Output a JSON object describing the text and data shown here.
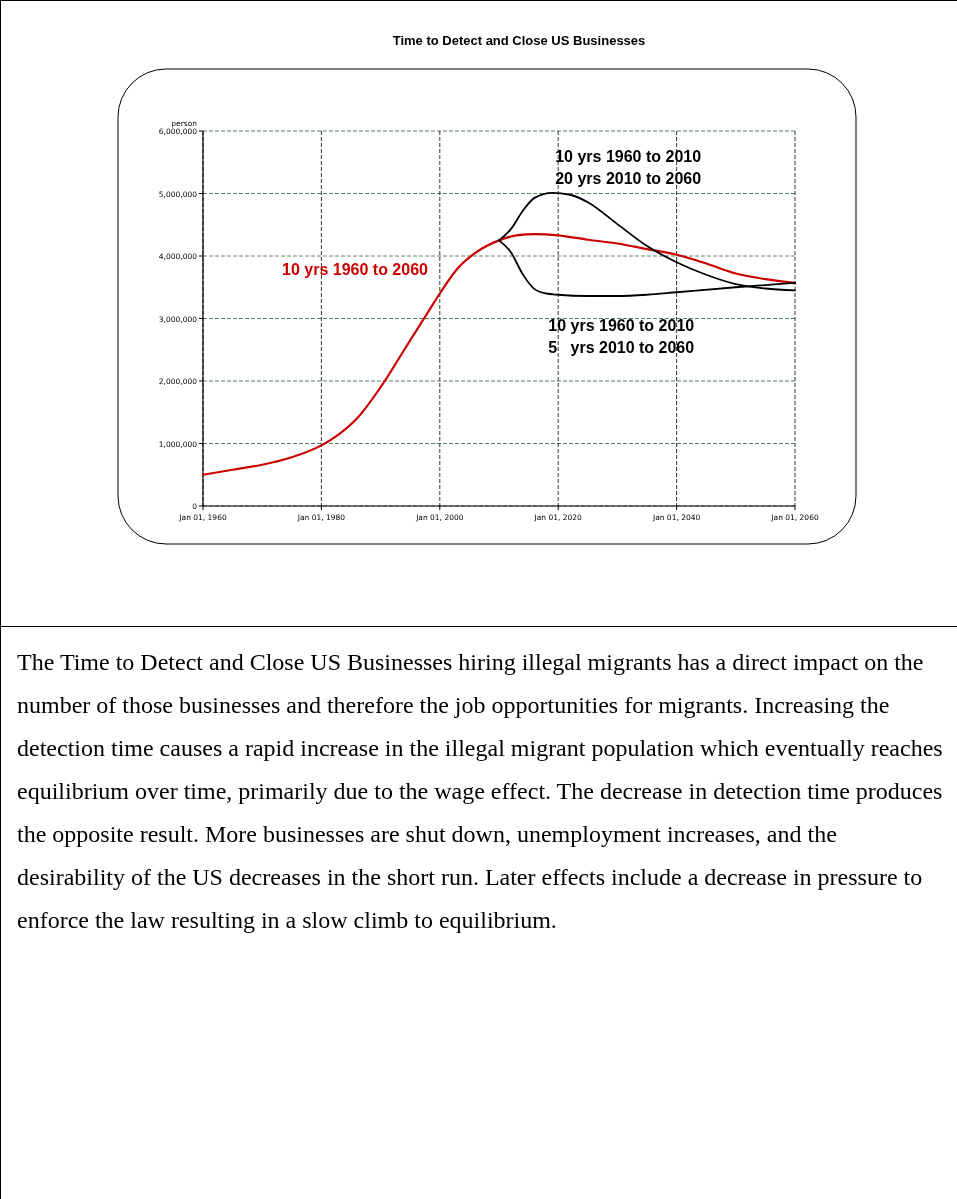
{
  "chart_data": {
    "type": "line",
    "title": "Time to Detect and Close US Businesses",
    "ylabel": "person",
    "xlim": [
      "1960-01-01",
      "2060-01-01"
    ],
    "xticks": [
      {
        "value": "1960-01-01",
        "label": "Jan 01, 1960"
      },
      {
        "value": "1980-01-01",
        "label": "Jan 01, 1980"
      },
      {
        "value": "2000-01-01",
        "label": "Jan 01, 2000"
      },
      {
        "value": "2020-01-01",
        "label": "Jan 01, 2020"
      },
      {
        "value": "2040-01-01",
        "label": "Jan 01, 2040"
      },
      {
        "value": "2060-01-01",
        "label": "Jan 01, 2060"
      }
    ],
    "ylim": [
      0,
      6000000
    ],
    "yticks": [
      {
        "value": 0,
        "label": "0"
      },
      {
        "value": 1000000,
        "label": "1,000,000"
      },
      {
        "value": 2000000,
        "label": "2,000,000"
      },
      {
        "value": 3000000,
        "label": "3,000,000"
      },
      {
        "value": 4000000,
        "label": "4,000,000"
      },
      {
        "value": 5000000,
        "label": "5,000,000"
      },
      {
        "value": 6000000,
        "label": "6,000,000"
      }
    ],
    "grid": true,
    "legend": false,
    "marker": "none",
    "line_style": "solid",
    "series": [
      {
        "name": "10 yrs 1960 to 2060",
        "color": "#cc0000",
        "x": [
          "1960",
          "1965",
          "1970",
          "1975",
          "1980",
          "1983",
          "1986",
          "1990",
          "1994",
          "1998",
          "2000",
          "2003",
          "2006",
          "2010",
          "2013",
          "2016",
          "2020",
          "2025",
          "2030",
          "2035",
          "2040",
          "2045",
          "2050",
          "2055",
          "2060"
        ],
        "values": [
          500000,
          580000,
          660000,
          780000,
          970000,
          1150000,
          1400000,
          1900000,
          2500000,
          3100000,
          3400000,
          3800000,
          4050000,
          4250000,
          4330000,
          4350000,
          4330000,
          4260000,
          4200000,
          4110000,
          4020000,
          3880000,
          3720000,
          3630000,
          3570000
        ]
      },
      {
        "name": "10 yrs 1960 to 2010\n20 yrs 2010 to 2060",
        "color": "#000000",
        "x": [
          "2010",
          "2012",
          "2014",
          "2016",
          "2019",
          "2022",
          "2025",
          "2030",
          "2035",
          "2040",
          "2045",
          "2050",
          "2055",
          "2060"
        ],
        "values": [
          4250000,
          4430000,
          4720000,
          4930000,
          5010000,
          4980000,
          4860000,
          4510000,
          4160000,
          3900000,
          3700000,
          3550000,
          3480000,
          3450000
        ]
      },
      {
        "name": "10 yrs 1960 to 2010\n5   yrs 2010 to 2060",
        "color": "#000000",
        "x": [
          "2010",
          "2012",
          "2014",
          "2016",
          "2018",
          "2020",
          "2025",
          "2030",
          "2035",
          "2040",
          "2050",
          "2060"
        ],
        "values": [
          4250000,
          4060000,
          3710000,
          3470000,
          3400000,
          3380000,
          3360000,
          3360000,
          3380000,
          3420000,
          3500000,
          3570000
        ]
      }
    ],
    "annotations": [
      "The Time to Detect and Close US Businesses hiring illegal migrants has a direct impact on the number of those businesses and therefore the job opportunities for migrants. Increasing the detection time causes a rapid increase in the illegal migrant population which eventually reaches equilibrium over time, primarily due to the wage effect. The decrease in detection time produces the opposite result. More businesses are shut down, unemployment increases, and the desirability of the US decreases in the short run. Later effects include a decrease in pressure to enforce the law resulting in a slow climb to equilibrium."
    ]
  }
}
